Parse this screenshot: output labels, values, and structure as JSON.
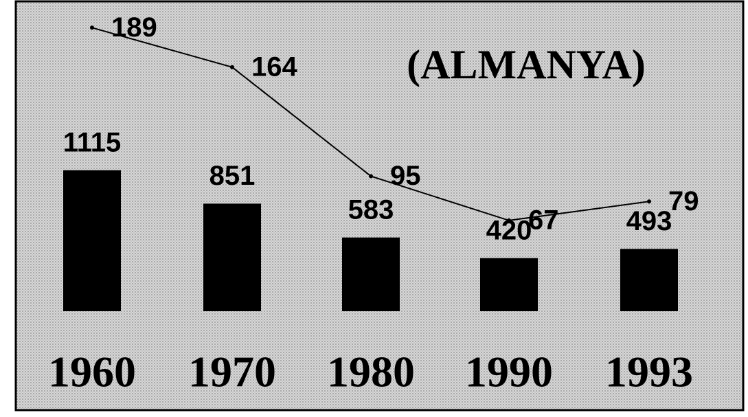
{
  "chart_data": {
    "type": "bar",
    "title": "(ALMANYA)",
    "categories": [
      "1960",
      "1970",
      "1980",
      "1990",
      "1993"
    ],
    "series": [
      {
        "type": "bar",
        "color": "#000000",
        "values": [
          1115,
          851,
          583,
          420,
          493
        ]
      },
      {
        "type": "line",
        "color": "#000000",
        "values": [
          189,
          164,
          95,
          67,
          79
        ]
      }
    ]
  }
}
